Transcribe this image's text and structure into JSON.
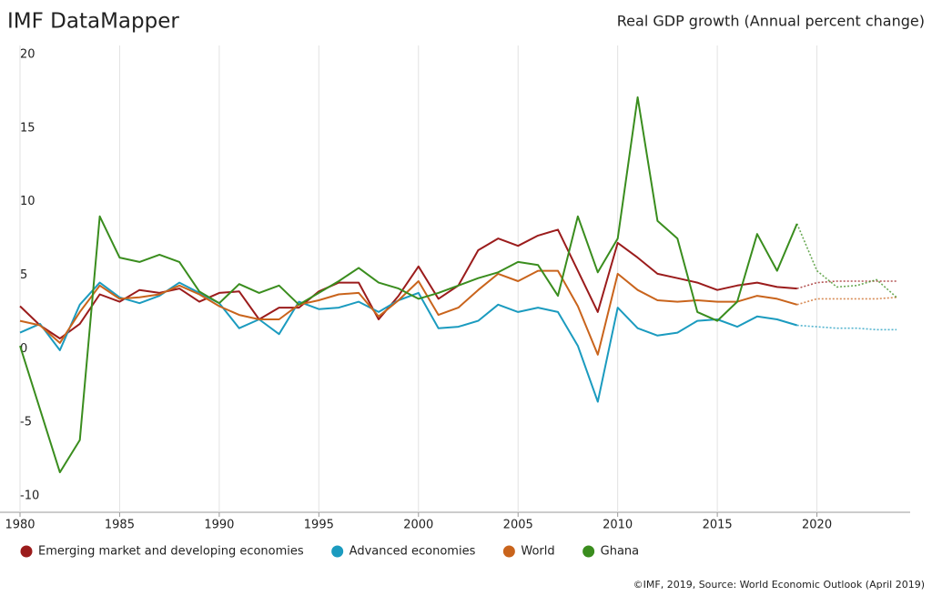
{
  "chart_data": {
    "type": "line",
    "brand": "IMF DataMapper",
    "title": "Real GDP growth (Annual percent change)",
    "source": "©IMF, 2019, Source: World Economic Outlook (April 2019)",
    "x": [
      1980,
      1981,
      1982,
      1983,
      1984,
      1985,
      1986,
      1987,
      1988,
      1989,
      1990,
      1991,
      1992,
      1993,
      1994,
      1995,
      1996,
      1997,
      1998,
      1999,
      2000,
      2001,
      2002,
      2003,
      2004,
      2005,
      2006,
      2007,
      2008,
      2009,
      2010,
      2011,
      2012,
      2013,
      2014,
      2015,
      2016,
      2017,
      2018,
      2019,
      2020,
      2021,
      2022,
      2023,
      2024
    ],
    "forecast_from": 2019,
    "series": [
      {
        "name": "Emerging market and developing economies",
        "color": "#9b1c1c",
        "values": [
          2.9,
          1.6,
          0.7,
          1.7,
          3.7,
          3.2,
          4.0,
          3.8,
          4.1,
          3.2,
          3.8,
          3.9,
          2.0,
          2.8,
          2.8,
          3.9,
          4.5,
          4.5,
          2.0,
          3.6,
          5.6,
          3.4,
          4.3,
          6.7,
          7.5,
          7.0,
          7.7,
          8.1,
          5.3,
          2.5,
          7.2,
          6.2,
          5.1,
          4.8,
          4.5,
          4.0,
          4.3,
          4.5,
          4.2,
          4.1,
          4.5,
          4.6,
          4.6,
          4.6,
          4.6
        ]
      },
      {
        "name": "Advanced economies",
        "color": "#1b9bbf",
        "values": [
          1.1,
          1.7,
          -0.1,
          3.0,
          4.5,
          3.5,
          3.1,
          3.6,
          4.5,
          3.8,
          3.1,
          1.4,
          2.0,
          1.0,
          3.2,
          2.7,
          2.8,
          3.2,
          2.5,
          3.3,
          3.8,
          1.4,
          1.5,
          1.9,
          3.0,
          2.5,
          2.8,
          2.5,
          0.2,
          -3.6,
          2.8,
          1.4,
          0.9,
          1.1,
          1.9,
          2.0,
          1.5,
          2.2,
          2.0,
          1.6,
          1.5,
          1.4,
          1.4,
          1.3,
          1.3
        ]
      },
      {
        "name": "World",
        "color": "#c9641c",
        "values": [
          1.9,
          1.6,
          0.4,
          2.5,
          4.3,
          3.4,
          3.5,
          3.7,
          4.3,
          3.7,
          2.9,
          2.3,
          2.0,
          2.0,
          3.0,
          3.3,
          3.7,
          3.8,
          2.2,
          3.3,
          4.6,
          2.3,
          2.8,
          4.0,
          5.1,
          4.6,
          5.3,
          5.3,
          2.9,
          -0.4,
          5.1,
          4.0,
          3.3,
          3.2,
          3.3,
          3.2,
          3.2,
          3.6,
          3.4,
          3.0,
          3.4,
          3.4,
          3.4,
          3.4,
          3.5
        ]
      },
      {
        "name": "Ghana",
        "color": "#3a8d1e",
        "values": [
          0.2,
          -4.1,
          -8.4,
          -6.2,
          9.0,
          6.2,
          5.9,
          6.4,
          5.9,
          3.9,
          3.1,
          4.4,
          3.8,
          4.3,
          3.0,
          3.8,
          4.6,
          5.5,
          4.5,
          4.1,
          3.4,
          3.8,
          4.3,
          4.8,
          5.2,
          5.9,
          5.7,
          3.6,
          9.0,
          5.2,
          7.5,
          17.1,
          8.7,
          7.5,
          2.5,
          1.9,
          3.2,
          7.8,
          5.3,
          8.5,
          5.3,
          4.2,
          4.3,
          4.7,
          3.5
        ]
      }
    ],
    "xlim": [
      1980,
      2025
    ],
    "xticks": [
      1980,
      1985,
      1990,
      1995,
      2000,
      2005,
      2010,
      2015,
      2020
    ],
    "ylim": [
      -10,
      20
    ],
    "yticks": [
      -10,
      -5,
      0,
      5,
      10,
      15,
      20
    ],
    "grid": true,
    "legend": "bottom"
  }
}
